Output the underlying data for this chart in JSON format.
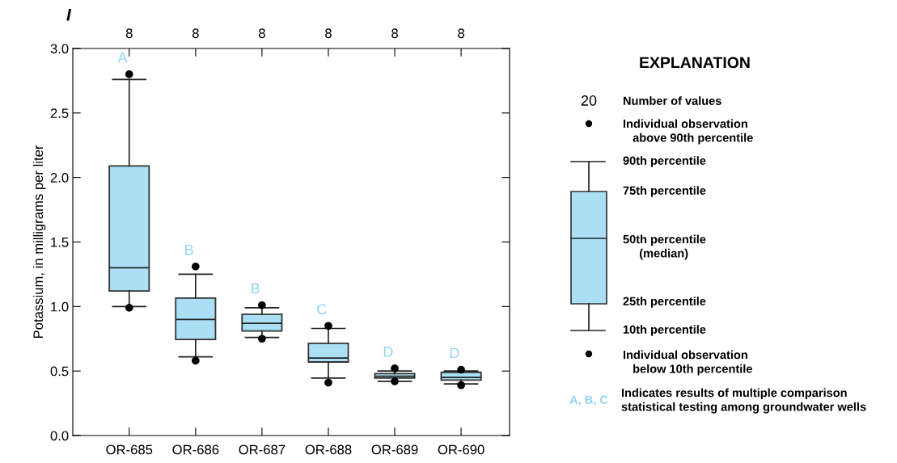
{
  "chart_data": {
    "type": "box",
    "title": "I",
    "ylabel": "Potassium, in milligrams per liter",
    "categories": [
      "OR-685",
      "OR-686",
      "OR-687",
      "OR-688",
      "OR-689",
      "OR-690"
    ],
    "series": [
      {
        "color": "#aadff5",
        "boxes": [
          {
            "low": 1.0,
            "q1": 1.12,
            "median": 1.3,
            "q3": 2.09,
            "high": 2.76,
            "outliers": [
              2.8,
              0.99
            ]
          },
          {
            "low": 0.61,
            "q1": 0.745,
            "median": 0.9,
            "q3": 1.065,
            "high": 1.25,
            "outliers": [
              1.31,
              0.58
            ]
          },
          {
            "low": 0.76,
            "q1": 0.81,
            "median": 0.87,
            "q3": 0.94,
            "high": 0.99,
            "outliers": [
              1.01,
              0.75
            ]
          },
          {
            "low": 0.445,
            "q1": 0.57,
            "median": 0.6,
            "q3": 0.715,
            "high": 0.83,
            "outliers": [
              0.85,
              0.41
            ]
          },
          {
            "low": 0.42,
            "q1": 0.445,
            "median": 0.46,
            "q3": 0.48,
            "high": 0.5,
            "outliers": [
              0.52,
              0.42
            ]
          },
          {
            "low": 0.4,
            "q1": 0.43,
            "median": 0.45,
            "q3": 0.49,
            "high": 0.5,
            "outliers": [
              0.51,
              0.39
            ]
          }
        ]
      }
    ],
    "ylim": [
      0,
      3
    ],
    "yticks": [
      {
        "value": 0,
        "label": "0.0"
      },
      {
        "value": 0.5,
        "label": "0.5"
      },
      {
        "value": 1,
        "label": "1.0"
      },
      {
        "value": 1.5,
        "label": "1.5"
      },
      {
        "value": 2,
        "label": "2.0"
      },
      {
        "value": 2.5,
        "label": "2.5"
      },
      {
        "value": 3,
        "label": "3.0"
      }
    ],
    "grid": false,
    "legend_title": "EXPLANATION",
    "annotations": [
      "8",
      "8",
      "8",
      "8",
      "8",
      "8",
      "A",
      "B",
      "B",
      "C",
      "D",
      "D",
      "20",
      "Number of values",
      "Individual observation\n   above 90th percentile",
      "90th percentile",
      "75th percentile",
      "50th percentile\n     (median)",
      "25th percentile",
      "10th percentile",
      "Individual observation\n   below 10th percentile",
      "A, B, C",
      "Indicates results of multiple comparison\nstatistical testing among groundwater wells"
    ]
  }
}
